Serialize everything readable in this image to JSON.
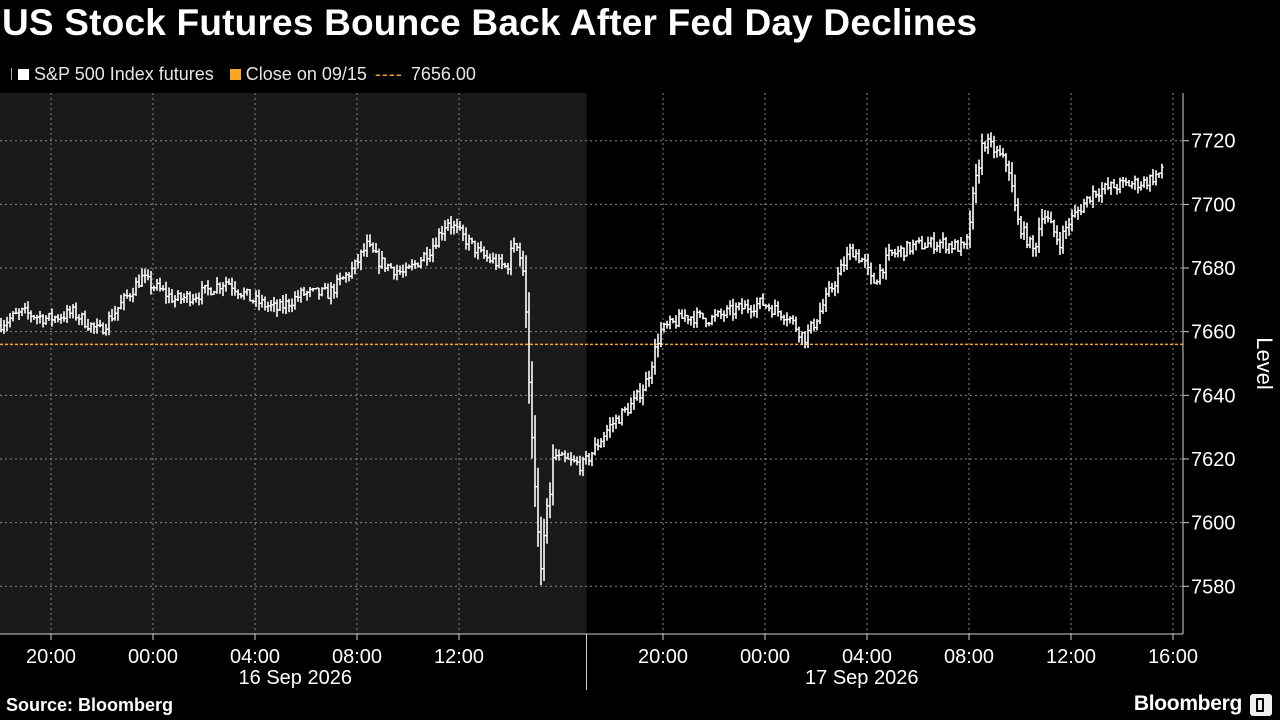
{
  "title": "US Stock Futures Bounce Back After Fed Day Declines",
  "legend": {
    "series_label": "S&P 500 Index futures",
    "close_label": "Close on 09/15",
    "close_line_sample": "----",
    "close_value": "7656.00"
  },
  "footer": {
    "source": "Source: Bloomberg",
    "brand": "Bloomberg"
  },
  "colors": {
    "background": "#000000",
    "shaded_session": "#1a1a1a",
    "series": "#ffffff",
    "reference_line": "#f6a623",
    "grid": "#8a8a8a"
  },
  "chart_data": {
    "type": "ohlc",
    "ylabel": "Level",
    "ylim": [
      7565,
      7735
    ],
    "y_ticks": [
      7580,
      7600,
      7620,
      7640,
      7660,
      7680,
      7700,
      7720
    ],
    "x_ticks": [
      "20:00",
      "00:00",
      "04:00",
      "08:00",
      "12:00",
      "20:00",
      "00:00",
      "04:00",
      "08:00",
      "12:00",
      "16:00"
    ],
    "date_labels": [
      "16 Sep 2026",
      "17 Sep 2026"
    ],
    "reference_line": {
      "label": "Close on 09/15",
      "value": 7656.0
    },
    "shaded_session": "Sep 15 18:00 to Sep 16 17:00",
    "series": [
      {
        "name": "S&P 500 Index futures",
        "points": [
          [
            "2026-09-15 18:00",
            7662
          ],
          [
            "2026-09-15 19:00",
            7666
          ],
          [
            "2026-09-15 20:00",
            7664
          ],
          [
            "2026-09-15 21:00",
            7666
          ],
          [
            "2026-09-15 22:00",
            7660
          ],
          [
            "2026-09-15 23:00",
            7670
          ],
          [
            "2026-09-15 23:40",
            7677
          ],
          [
            "2026-09-16 00:00",
            7675
          ],
          [
            "2026-09-16 01:00",
            7670
          ],
          [
            "2026-09-16 02:00",
            7672
          ],
          [
            "2026-09-16 03:00",
            7676
          ],
          [
            "2026-09-16 04:00",
            7670
          ],
          [
            "2026-09-16 05:00",
            7667
          ],
          [
            "2026-09-16 06:00",
            7672
          ],
          [
            "2026-09-16 07:00",
            7672
          ],
          [
            "2026-09-16 08:00",
            7680
          ],
          [
            "2026-09-16 08:30",
            7687
          ],
          [
            "2026-09-16 09:00",
            7682
          ],
          [
            "2026-09-16 10:00",
            7678
          ],
          [
            "2026-09-16 11:00",
            7686
          ],
          [
            "2026-09-16 11:40",
            7695
          ],
          [
            "2026-09-16 12:00",
            7692
          ],
          [
            "2026-09-16 13:00",
            7684
          ],
          [
            "2026-09-16 14:00",
            7680
          ],
          [
            "2026-09-16 14:20",
            7690
          ],
          [
            "2026-09-16 14:40",
            7678
          ],
          [
            "2026-09-16 14:50",
            7650
          ],
          [
            "2026-09-16 15:00",
            7625
          ],
          [
            "2026-09-16 15:10",
            7600
          ],
          [
            "2026-09-16 15:20",
            7585
          ],
          [
            "2026-09-16 15:30",
            7600
          ],
          [
            "2026-09-16 15:40",
            7608
          ],
          [
            "2026-09-16 15:50",
            7622
          ],
          [
            "2026-09-16 16:00",
            7620
          ],
          [
            "2026-09-16 17:00",
            7618
          ],
          [
            "2026-09-16 18:00",
            7630
          ],
          [
            "2026-09-16 19:00",
            7638
          ],
          [
            "2026-09-16 19:30",
            7645
          ],
          [
            "2026-09-16 20:00",
            7660
          ],
          [
            "2026-09-16 21:00",
            7665
          ],
          [
            "2026-09-16 22:00",
            7664
          ],
          [
            "2026-09-16 23:00",
            7667
          ],
          [
            "2026-09-17 00:00",
            7669
          ],
          [
            "2026-09-17 01:00",
            7665
          ],
          [
            "2026-09-17 01:40",
            7658
          ],
          [
            "2026-09-17 02:00",
            7662
          ],
          [
            "2026-09-17 03:00",
            7678
          ],
          [
            "2026-09-17 03:30",
            7686
          ],
          [
            "2026-09-17 04:00",
            7682
          ],
          [
            "2026-09-17 04:20",
            7675
          ],
          [
            "2026-09-17 05:00",
            7684
          ],
          [
            "2026-09-17 06:00",
            7687
          ],
          [
            "2026-09-17 07:00",
            7688
          ],
          [
            "2026-09-17 08:00",
            7686
          ],
          [
            "2026-09-17 08:20",
            7705
          ],
          [
            "2026-09-17 08:40",
            7720
          ],
          [
            "2026-09-17 09:00",
            7718
          ],
          [
            "2026-09-17 09:40",
            7712
          ],
          [
            "2026-09-17 10:00",
            7695
          ],
          [
            "2026-09-17 10:40",
            7685
          ],
          [
            "2026-09-17 11:00",
            7698
          ],
          [
            "2026-09-17 11:40",
            7688
          ],
          [
            "2026-09-17 12:00",
            7694
          ],
          [
            "2026-09-17 13:00",
            7704
          ],
          [
            "2026-09-17 14:00",
            7706
          ],
          [
            "2026-09-17 15:00",
            7707
          ],
          [
            "2026-09-17 15:40",
            7710
          ]
        ]
      }
    ]
  }
}
